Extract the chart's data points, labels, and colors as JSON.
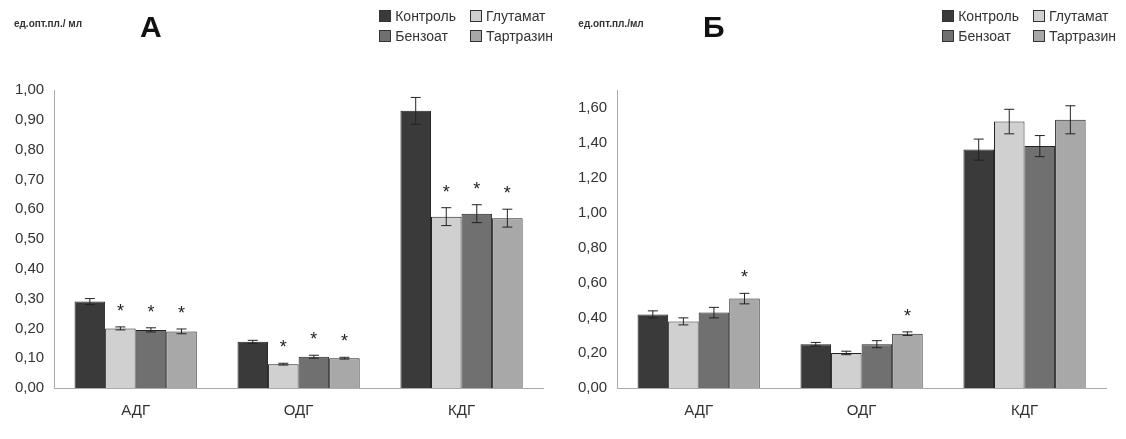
{
  "chart_data": [
    {
      "type": "bar",
      "title": "А",
      "ylabel": "ед.опт.пл./ мл",
      "categories": [
        "АДГ",
        "ОДГ",
        "КДГ"
      ],
      "ylim": [
        0,
        1.0
      ],
      "yticks": [
        {
          "value": 0,
          "label": "0,00"
        },
        {
          "value": 0.1,
          "label": "0,10"
        },
        {
          "value": 0.2,
          "label": "0,20"
        },
        {
          "value": 0.3,
          "label": "0,30"
        },
        {
          "value": 0.4,
          "label": "0,40"
        },
        {
          "value": 0.5,
          "label": "0,50"
        },
        {
          "value": 0.6,
          "label": "0,60"
        },
        {
          "value": 0.7,
          "label": "0,70"
        },
        {
          "value": 0.8,
          "label": "0,80"
        },
        {
          "value": 0.9,
          "label": "0,90"
        },
        {
          "value": 1.0,
          "label": "1,00"
        }
      ],
      "grid": false,
      "legend": "top right",
      "series": [
        {
          "name": "Контроль",
          "color": "#3a3a3a",
          "values": [
            0.29,
            0.155,
            0.93
          ],
          "errors": [
            0.01,
            0.005,
            0.045
          ],
          "value_labels": [
            null,
            null,
            null
          ]
        },
        {
          "name": "Глутамат",
          "color": "#d0d0d0",
          "values": [
            0.2,
            0.08,
            0.575
          ],
          "errors": [
            0.005,
            0.003,
            0.03
          ],
          "value_labels": [
            "*",
            "*",
            "*"
          ]
        },
        {
          "name": "Бензоат",
          "color": "#707070",
          "values": [
            0.195,
            0.105,
            0.585
          ],
          "errors": [
            0.007,
            0.005,
            0.03
          ],
          "value_labels": [
            "*",
            "*",
            "*"
          ]
        },
        {
          "name": "Тартразин",
          "color": "#a8a8a8",
          "values": [
            0.19,
            0.1,
            0.57
          ],
          "errors": [
            0.008,
            0.003,
            0.03
          ],
          "value_labels": [
            "*",
            "*",
            "*"
          ]
        }
      ]
    },
    {
      "type": "bar",
      "title": "Б",
      "ylabel": "ед.опт.пл./мл",
      "categories": [
        "АДГ",
        "ОДГ",
        "КДГ"
      ],
      "ylim": [
        0,
        1.7
      ],
      "yticks": [
        {
          "value": 0,
          "label": "0,00"
        },
        {
          "value": 0.2,
          "label": "0,20"
        },
        {
          "value": 0.4,
          "label": "0,40"
        },
        {
          "value": 0.6,
          "label": "0,60"
        },
        {
          "value": 0.8,
          "label": "0,80"
        },
        {
          "value": 1.0,
          "label": "1,00"
        },
        {
          "value": 1.2,
          "label": "1,20"
        },
        {
          "value": 1.4,
          "label": "1,40"
        },
        {
          "value": 1.6,
          "label": "1,60"
        }
      ],
      "grid": false,
      "legend": "top right",
      "series": [
        {
          "name": "Контроль",
          "color": "#3a3a3a",
          "values": [
            0.42,
            0.25,
            1.36
          ],
          "errors": [
            0.02,
            0.01,
            0.06
          ],
          "value_labels": [
            null,
            null,
            null
          ]
        },
        {
          "name": "Глутамат",
          "color": "#d0d0d0",
          "values": [
            0.38,
            0.2,
            1.52
          ],
          "errors": [
            0.02,
            0.01,
            0.07
          ],
          "value_labels": [
            null,
            null,
            null
          ]
        },
        {
          "name": "Бензоат",
          "color": "#707070",
          "values": [
            0.43,
            0.25,
            1.38
          ],
          "errors": [
            0.03,
            0.02,
            0.06
          ],
          "value_labels": [
            null,
            null,
            null
          ]
        },
        {
          "name": "Тартразин",
          "color": "#a8a8a8",
          "values": [
            0.51,
            0.31,
            1.53
          ],
          "errors": [
            0.03,
            0.01,
            0.08
          ],
          "value_labels": [
            "*",
            "*",
            null
          ]
        }
      ]
    }
  ]
}
